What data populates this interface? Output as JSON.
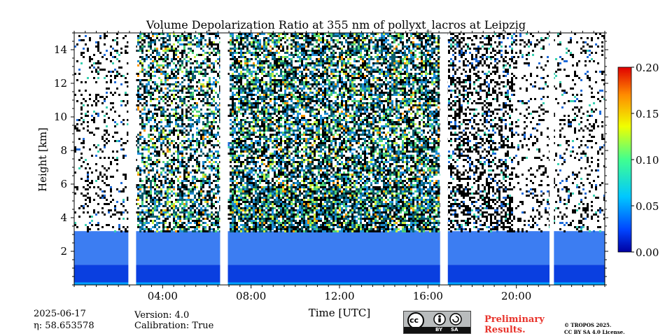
{
  "chart_data": {
    "type": "heatmap",
    "title": "Volume Depolarization Ratio at 355 nm of pollyxt_lacros at Leipzig",
    "xlabel": "Time [UTC]",
    "ylabel": "Height [km]",
    "x_range_hours": [
      0,
      24
    ],
    "ylim": [
      0,
      15
    ],
    "x_ticks": [
      "04:00",
      "08:00",
      "12:00",
      "16:00",
      "20:00"
    ],
    "x_tick_hours": [
      4,
      8,
      12,
      16,
      20
    ],
    "y_ticks": [
      "2",
      "4",
      "6",
      "8",
      "10",
      "12",
      "14"
    ],
    "y_tick_values": [
      2,
      4,
      6,
      8,
      10,
      12,
      14
    ],
    "colorbar": {
      "min": 0.0,
      "max": 0.2,
      "ticks": [
        "0.00",
        "0.05",
        "0.10",
        "0.15",
        "0.20"
      ],
      "tick_values": [
        0.0,
        0.05,
        0.1,
        0.15,
        0.2
      ],
      "colormap": "jet"
    },
    "data_gaps_hours": [
      [
        2.45,
        2.8
      ],
      [
        6.6,
        6.95
      ],
      [
        16.55,
        16.9
      ],
      [
        21.5,
        21.7
      ]
    ],
    "grid": false
  },
  "footer": {
    "date": "2025-06-17",
    "eta": "η: 58.653578",
    "version": "Version: 4.0",
    "calibration": "Calibration: True",
    "preliminary": "Preliminary Results.",
    "copyright_line1": "© TROPOS 2025.",
    "copyright_line2": "CC BY SA 4.0 License.",
    "license_badge": {
      "cc": "cc",
      "by": "BY",
      "sa": "SA"
    }
  }
}
